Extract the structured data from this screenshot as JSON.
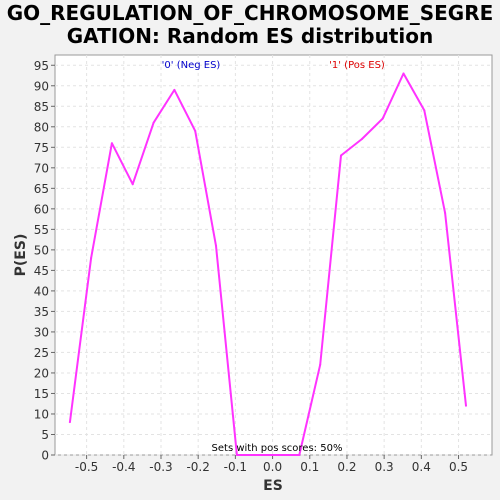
{
  "chart_data": {
    "type": "line",
    "title": "GO_REGULATION_OF_CHROMOSOME_SEGRE\nGATION: Random ES distribution",
    "xlabel": "ES",
    "ylabel": "P(ES)",
    "xlim": [
      -0.585,
      0.59
    ],
    "ylim": [
      0,
      97.5
    ],
    "x_ticks": [
      "-0.5",
      "-0.4",
      "-0.3",
      "-0.2",
      "-0.1",
      "0.0",
      "0.1",
      "0.2",
      "0.3",
      "0.4",
      "0.5"
    ],
    "y_ticks": [
      "0",
      "5",
      "10",
      "15",
      "20",
      "25",
      "30",
      "35",
      "40",
      "45",
      "50",
      "55",
      "60",
      "65",
      "70",
      "75",
      "80",
      "85",
      "90",
      "95"
    ],
    "grid": true,
    "series": [
      {
        "color": "#ff33ff",
        "x": [
          -0.545,
          -0.488,
          -0.432,
          -0.376,
          -0.32,
          -0.264,
          -0.208,
          -0.152,
          -0.096,
          0.072,
          0.128,
          0.184,
          0.24,
          0.296,
          0.352,
          0.408,
          0.464,
          0.52
        ],
        "y": [
          8,
          48,
          76,
          66,
          81,
          89,
          79,
          51,
          0,
          0,
          22,
          73,
          77,
          82,
          93,
          84,
          59,
          12
        ]
      }
    ],
    "annotations": {
      "neg_label": "'0' (Neg ES)",
      "neg_color": "#0000cc",
      "pos_label": "'1' (Pos ES)",
      "pos_color": "#dd0000",
      "footer": "Sets with pos scores: 50%"
    }
  }
}
